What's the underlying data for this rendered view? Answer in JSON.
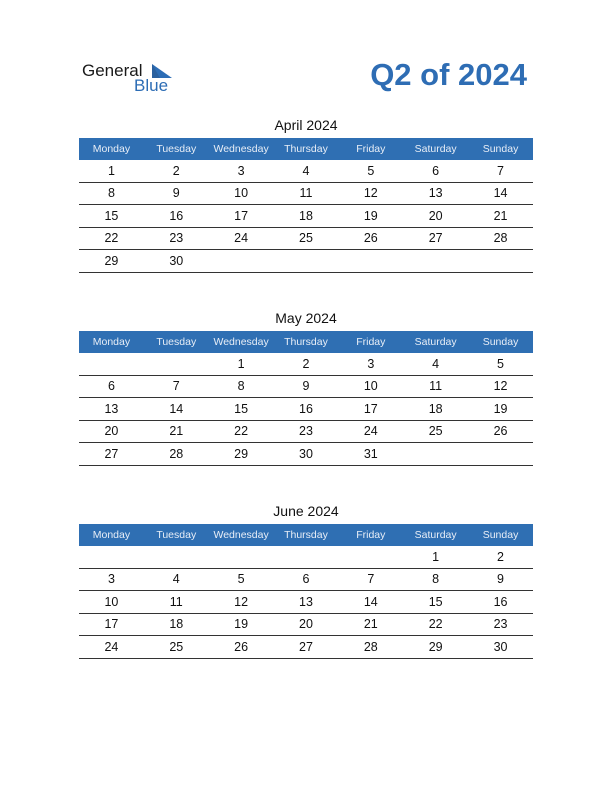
{
  "header": {
    "logo_general": "General",
    "logo_blue": "Blue",
    "title": "Q2 of 2024"
  },
  "months": [
    {
      "title": "April 2024",
      "weekdays": [
        "Monday",
        "Tuesday",
        "Wednesday",
        "Thursday",
        "Friday",
        "Saturday",
        "Sunday"
      ],
      "weeks": [
        [
          1,
          2,
          3,
          4,
          5,
          6,
          7
        ],
        [
          8,
          9,
          10,
          11,
          12,
          13,
          14
        ],
        [
          15,
          16,
          17,
          18,
          19,
          20,
          21
        ],
        [
          22,
          23,
          24,
          25,
          26,
          27,
          28
        ],
        [
          29,
          30,
          null,
          null,
          null,
          null,
          null
        ]
      ]
    },
    {
      "title": "May 2024",
      "weekdays": [
        "Monday",
        "Tuesday",
        "Wednesday",
        "Thursday",
        "Friday",
        "Saturday",
        "Sunday"
      ],
      "weeks": [
        [
          null,
          null,
          1,
          2,
          3,
          4,
          5
        ],
        [
          6,
          7,
          8,
          9,
          10,
          11,
          12
        ],
        [
          13,
          14,
          15,
          16,
          17,
          18,
          19
        ],
        [
          20,
          21,
          22,
          23,
          24,
          25,
          26
        ],
        [
          27,
          28,
          29,
          30,
          31,
          null,
          null
        ]
      ]
    },
    {
      "title": "June 2024",
      "weekdays": [
        "Monday",
        "Tuesday",
        "Wednesday",
        "Thursday",
        "Friday",
        "Saturday",
        "Sunday"
      ],
      "weeks": [
        [
          null,
          null,
          null,
          null,
          null,
          1,
          2
        ],
        [
          3,
          4,
          5,
          6,
          7,
          8,
          9
        ],
        [
          10,
          11,
          12,
          13,
          14,
          15,
          16
        ],
        [
          17,
          18,
          19,
          20,
          21,
          22,
          23
        ],
        [
          24,
          25,
          26,
          27,
          28,
          29,
          30
        ]
      ]
    }
  ]
}
